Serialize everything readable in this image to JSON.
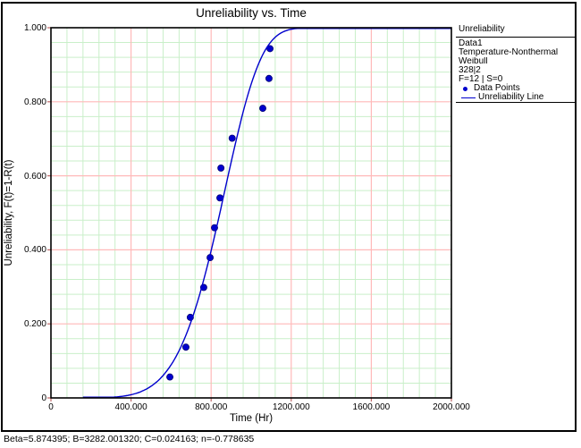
{
  "chart_data": {
    "type": "scatter",
    "title": "Unreliability vs. Time",
    "xlabel": "Time (Hr)",
    "ylabel": "Unreliability, F(t)=1-R(t)",
    "xlim": [
      0,
      2000
    ],
    "ylim": [
      0,
      1
    ],
    "grid": {
      "minor_on": true,
      "major_on": true,
      "x_minor_step": 80,
      "x_major_step": 400,
      "y_minor_step": 0.04,
      "y_major_step": 0.2,
      "minor_color": "#c9efc9",
      "major_color": "#ffb9b9",
      "tick_color": "#c06868"
    },
    "x_ticks": [
      {
        "value": 0,
        "label": "0"
      },
      {
        "value": 400,
        "label": "400.000"
      },
      {
        "value": 800,
        "label": "800.000"
      },
      {
        "value": 1200,
        "label": "1200.000"
      },
      {
        "value": 1600,
        "label": "1600.000"
      },
      {
        "value": 2000,
        "label": "2000.000"
      }
    ],
    "y_ticks": [
      {
        "value": 0,
        "label": "0"
      },
      {
        "value": 0.2,
        "label": "0.200"
      },
      {
        "value": 0.4,
        "label": "0.400"
      },
      {
        "value": 0.6,
        "label": "0.600"
      },
      {
        "value": 0.8,
        "label": "0.800"
      },
      {
        "value": 1,
        "label": "1.000"
      }
    ],
    "accent_color": "#0000cd",
    "series": [
      {
        "name": "Data Points",
        "type": "scatter",
        "color": "#0000cd",
        "points": [
          [
            594,
            0.0565
          ],
          [
            674,
            0.1371
          ],
          [
            696,
            0.2177
          ],
          [
            763,
            0.2984
          ],
          [
            795,
            0.379
          ],
          [
            817,
            0.4597
          ],
          [
            844,
            0.5403
          ],
          [
            849,
            0.621
          ],
          [
            905,
            0.7016
          ],
          [
            1058,
            0.7823
          ],
          [
            1089,
            0.8629
          ],
          [
            1094,
            0.9435
          ]
        ]
      },
      {
        "name": "Unreliability Line",
        "type": "line",
        "color": "#0000cd",
        "model": "weibull_cdf",
        "beta": 5.874395,
        "eta": 898,
        "t_start": 160,
        "t_end": 2000
      }
    ],
    "legend_position": "top-right"
  },
  "legend": {
    "header": "Unreliability",
    "lines": [
      "Data1",
      "Temperature-Nonthermal",
      "Weibull",
      "328|2",
      "F=12 | S=0"
    ],
    "marker_items": [
      {
        "marker": "dot",
        "label": "Data Points"
      },
      {
        "marker": "line",
        "label": "Unreliability Line"
      }
    ]
  },
  "status_bar": {
    "text": "Beta=5.874395; B=3282.001320; C=0.024163; n=-0.778635"
  }
}
